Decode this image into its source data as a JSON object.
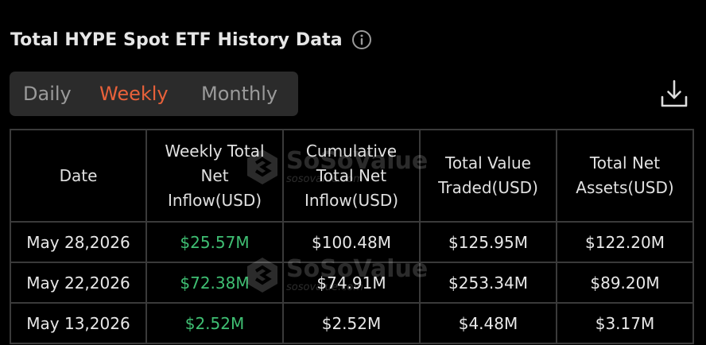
{
  "header": {
    "title": "Total HYPE Spot ETF History Data",
    "info_icon": "info-circle-icon"
  },
  "tabs": [
    {
      "label": "Daily",
      "active": false
    },
    {
      "label": "Weekly",
      "active": true
    },
    {
      "label": "Monthly",
      "active": false
    }
  ],
  "toolbar": {
    "download_icon": "download-icon"
  },
  "table": {
    "headers": {
      "date": "Date",
      "inflow": [
        "Weekly Total",
        "Net",
        "Inflow(USD)"
      ],
      "cumulative": [
        "Cumulative",
        "Total Net",
        "Inflow(USD)"
      ],
      "traded": [
        "Total Value",
        "Traded(USD)"
      ],
      "assets": [
        "Total Net",
        "Assets(USD)"
      ]
    },
    "rows": [
      {
        "date": "May 28,2026",
        "inflow": "$25.57M",
        "cumulative": "$100.48M",
        "traded": "$125.95M",
        "assets": "$122.20M"
      },
      {
        "date": "May 22,2026",
        "inflow": "$72.38M",
        "cumulative": "$74.91M",
        "traded": "$253.34M",
        "assets": "$89.20M"
      },
      {
        "date": "May 13,2026",
        "inflow": "$2.52M",
        "cumulative": "$2.52M",
        "traded": "$4.48M",
        "assets": "$3.17M"
      }
    ]
  },
  "watermark": {
    "brand": "SoSoValue",
    "url": "sosovalue.com"
  },
  "colors": {
    "background": "#000000",
    "accent": "#e8613a",
    "positive": "#3fbf73",
    "tab_bar": "#2b2b2b",
    "border": "#3a3a3a"
  }
}
